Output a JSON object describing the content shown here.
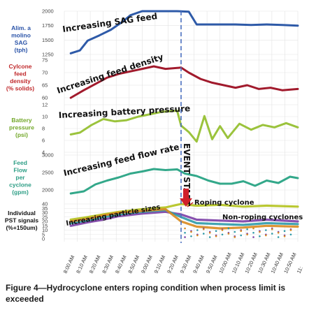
{
  "chart_data": {
    "type": "line",
    "x_ticks": [
      "8:00 AM",
      "8:10 AM",
      "8:20 AM",
      "8:30 AM",
      "8:40 AM",
      "8:50 AM",
      "9:00 AM",
      "9:10 AM",
      "9:20 AM",
      "9:30 AM",
      "9:40 AM",
      "9:50 AM",
      "10:00 AM",
      "10:10 AM",
      "10:20 AM",
      "10:30 AM",
      "10:40 AM",
      "10:50 AM",
      "11:"
    ],
    "event": {
      "x": "9:30 AM",
      "label": "EVENT START"
    },
    "panels": [
      {
        "name": "sag",
        "label_lines": [
          "Alim. a",
          "molino",
          "SAG",
          "(tph)"
        ],
        "label_color": "#2a53a8",
        "color": "#2e5aa8",
        "ylim": [
          1250,
          2000
        ],
        "yticks": [
          "2000",
          "1750",
          "1500",
          "1250"
        ],
        "annotation": "Increasing SAG feed",
        "series": [
          {
            "x": [
              8.083,
              8.2,
              8.3,
              8.45,
              8.6,
              8.75,
              8.85,
              9.0,
              9.2,
              9.45,
              9.6,
              9.7,
              9.85,
              10.0,
              10.2,
              10.4,
              10.6,
              10.8,
              11.0
            ],
            "y": [
              1270,
              1320,
              1490,
              1580,
              1680,
              1820,
              1930,
              2000,
              2000,
              2000,
              1990,
              1770,
              1770,
              1770,
              1770,
              1760,
              1770,
              1760,
              1750
            ]
          }
        ]
      },
      {
        "name": "density",
        "label_lines": [
          "Cylcone",
          "feed",
          "density",
          "(% solids)"
        ],
        "label_color": "#c0292b",
        "color": "#a11a2c",
        "ylim": [
          60,
          75
        ],
        "yticks": [
          "75",
          "70",
          "65",
          "60"
        ],
        "annotation": "Increasing feed density",
        "series": [
          {
            "x": [
              8.083,
              8.25,
              8.4,
              8.55,
              8.7,
              8.85,
              9.0,
              9.15,
              9.3,
              9.5,
              9.6,
              9.75,
              9.9,
              10.05,
              10.2,
              10.35,
              10.5,
              10.65,
              10.8,
              11.0
            ],
            "y": [
              60,
              63,
              65.5,
              68,
              69.5,
              70.5,
              71.5,
              72.5,
              71.5,
              72,
              70,
              67.5,
              66,
              65,
              64,
              65,
              63.5,
              64,
              63,
              63.5
            ]
          }
        ]
      },
      {
        "name": "battery",
        "label_lines": [
          "Battery",
          "pressure",
          "(psi)"
        ],
        "label_color": "#73a82a",
        "color": "#9bc33c",
        "ylim": [
          4,
          12
        ],
        "yticks": [
          "12",
          "10",
          "8",
          "6",
          "4"
        ],
        "annotation": "Increasing battery pressure",
        "series": [
          {
            "x": [
              8.083,
              8.2,
              8.35,
              8.5,
              8.65,
              8.8,
              8.95,
              9.1,
              9.25,
              9.45,
              9.5,
              9.6,
              9.7,
              9.8,
              9.9,
              10.0,
              10.1,
              10.25,
              10.4,
              10.55,
              10.7,
              10.85,
              11.0
            ],
            "y": [
              7,
              7.3,
              8.6,
              9.6,
              9.2,
              9.4,
              10,
              10.4,
              10.8,
              11,
              8.5,
              7.4,
              5.8,
              10.1,
              6.2,
              8.4,
              6.4,
              8.8,
              7.8,
              8.6,
              8.2,
              8.9,
              8.2
            ]
          }
        ]
      },
      {
        "name": "flow",
        "label_lines": [
          "Feed",
          "Flow",
          "per",
          "cyclone",
          "(gpm)"
        ],
        "label_color": "#2e9e86",
        "color": "#33a88a",
        "ylim": [
          2000,
          3000
        ],
        "yticks": [
          "3000",
          "2500",
          "2000"
        ],
        "annotation": "Increasing feed flow rate",
        "series": [
          {
            "x": [
              8.083,
              8.25,
              8.4,
              8.55,
              8.7,
              8.85,
              9.0,
              9.15,
              9.3,
              9.45,
              9.55,
              9.7,
              9.85,
              10.0,
              10.15,
              10.3,
              10.45,
              10.6,
              10.75,
              10.9,
              11.0
            ],
            "y": [
              1900,
              1960,
              2160,
              2270,
              2360,
              2470,
              2530,
              2600,
              2570,
              2590,
              2470,
              2400,
              2270,
              2180,
              2180,
              2250,
              2120,
              2270,
              2200,
              2380,
              2340
            ]
          }
        ]
      },
      {
        "name": "pst",
        "label_lines": [
          "Individual",
          "PST signals",
          "(%+150um)"
        ],
        "label_color": "#111111",
        "color": "#444444",
        "ylim": [
          0,
          40
        ],
        "yticks": [
          "40",
          "35",
          "30",
          "25",
          "20",
          "15",
          "10",
          "5",
          "0"
        ],
        "annotation": "Increasing particle sizes",
        "series": [
          {
            "name": "",
            "color": "#b3c21c",
            "x": [
              8.083,
              8.3,
              8.5,
              8.7,
              9.0,
              9.3,
              9.5,
              9.7,
              10.0,
              10.3,
              10.6,
              11.0
            ],
            "y": [
              22,
              25,
              28,
              31,
              34,
              36,
              40,
              38,
              39,
              37,
              38,
              37
            ]
          },
          {
            "name": "",
            "color": "#7b3ea6",
            "x": [
              8.083,
              8.3,
              8.5,
              8.7,
              9.0,
              9.3,
              9.5,
              9.7,
              10.0,
              10.3,
              10.6,
              11.0
            ],
            "y": [
              15,
              19,
              22,
              26,
              29,
              31,
              28,
              22,
              21,
              20,
              22,
              20
            ]
          },
          {
            "name": "",
            "color": "#2e9aa8",
            "x": [
              8.083,
              8.3,
              8.5,
              8.7,
              9.0,
              9.3,
              9.5,
              9.7,
              10.0,
              10.3,
              10.6,
              11.0
            ],
            "y": [
              18,
              21,
              25,
              28,
              31,
              33,
              25,
              18,
              17,
              16,
              18,
              17
            ]
          },
          {
            "name": "",
            "color": "#d98a1e",
            "x": [
              8.083,
              8.3,
              8.5,
              8.7,
              9.0,
              9.3,
              9.5,
              9.7,
              10.0,
              10.3,
              10.6,
              11.0
            ],
            "y": [
              20,
              23,
              27,
              30,
              32,
              34,
              20,
              14,
              12,
              13,
              15,
              14
            ]
          }
        ],
        "annotations": [
          "Roping cyclone",
          "Non-roping cyclones"
        ]
      }
    ]
  },
  "caption": "Figure 4—Hydrocyclone enters roping condition when process limit is exceeded"
}
